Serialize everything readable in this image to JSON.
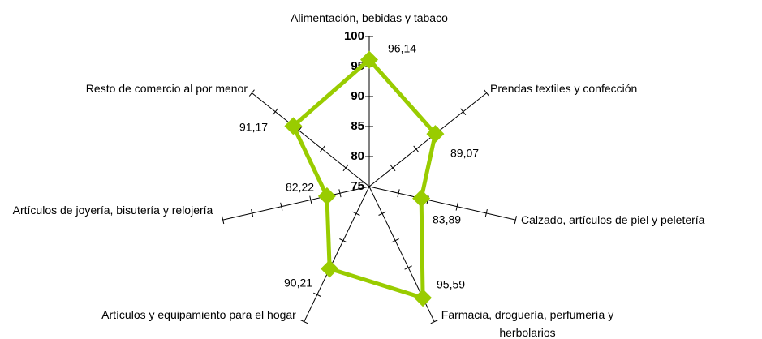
{
  "chart_data": {
    "type": "radar",
    "categories": [
      "Alimentación, bebidas y tabaco",
      "Prendas textiles y confección",
      "Calzado, artículos de piel y peletería",
      "Farmacia, droguería, perfumería y herbolarios",
      "Artículos y equipamiento para el hogar",
      "Artículos de joyería, bisutería y relojería",
      "Resto de comercio al por menor"
    ],
    "values": [
      96.14,
      89.07,
      83.89,
      95.59,
      90.21,
      82.22,
      91.17
    ],
    "value_labels": [
      "96,14",
      "89,07",
      "83,89",
      "95,59",
      "90,21",
      "82,22",
      "91,17"
    ],
    "color": "#99cc00",
    "ylim": [
      75,
      100
    ],
    "yticks": [
      75,
      80,
      85,
      90,
      95,
      100
    ]
  }
}
